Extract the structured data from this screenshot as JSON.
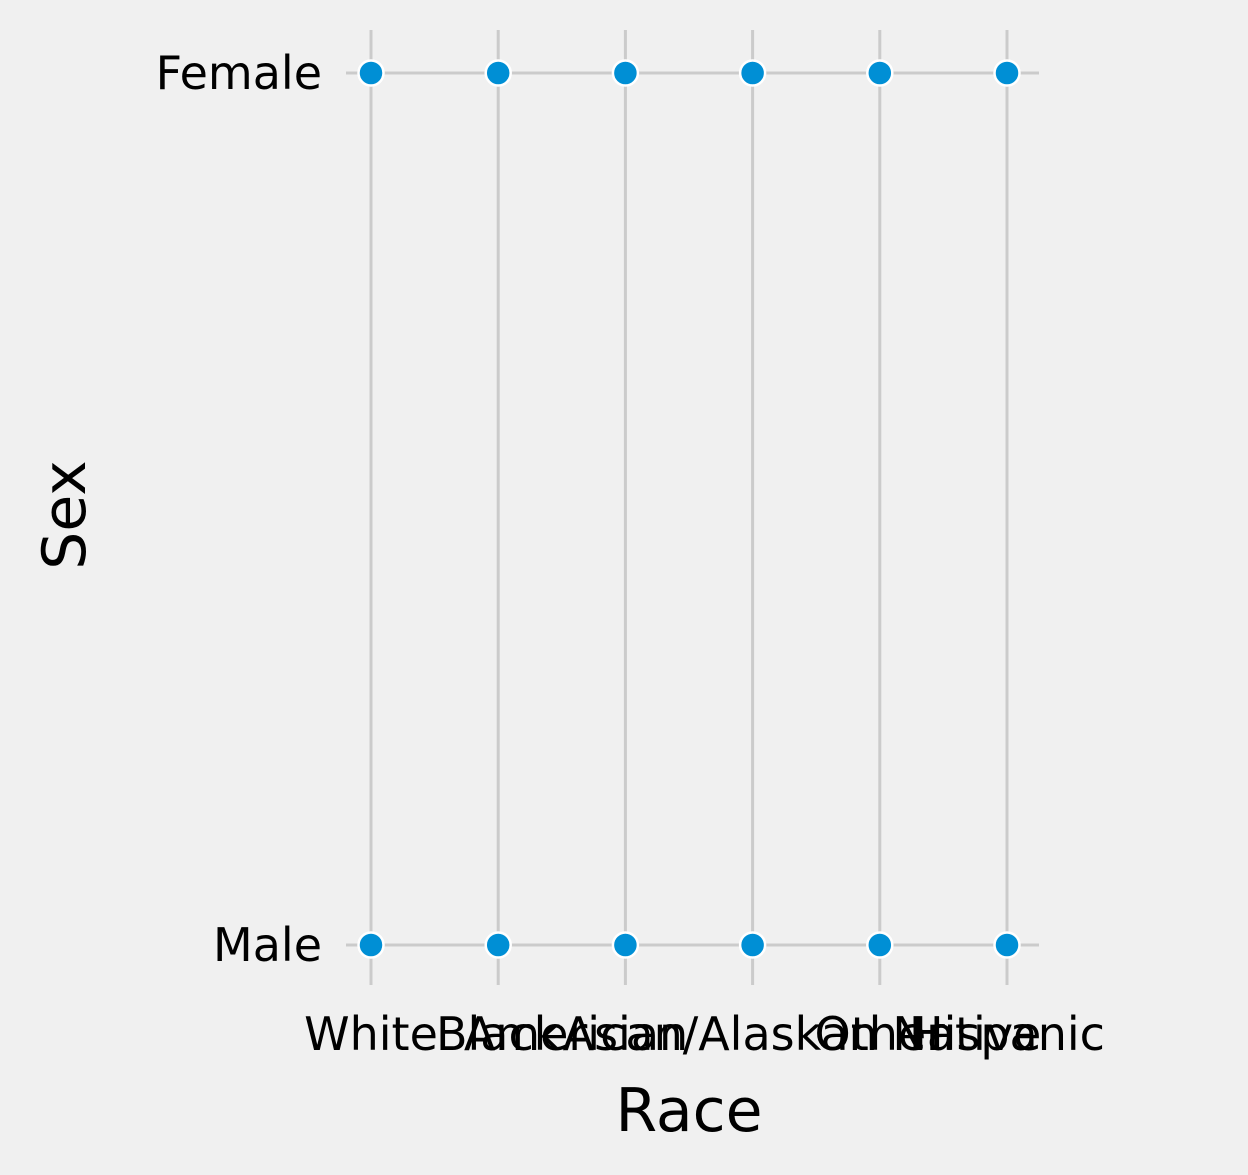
{
  "chart_data": {
    "type": "scatter",
    "x_categories": [
      "White",
      "Black",
      "Asian",
      "American/Alaskan Native",
      "Other",
      "Hispanic"
    ],
    "y_categories": [
      "Male",
      "Female"
    ],
    "points": [
      {
        "x": "White",
        "y": "Female"
      },
      {
        "x": "Black",
        "y": "Female"
      },
      {
        "x": "Asian",
        "y": "Female"
      },
      {
        "x": "American/Alaskan Native",
        "y": "Female"
      },
      {
        "x": "Other",
        "y": "Female"
      },
      {
        "x": "Hispanic",
        "y": "Female"
      },
      {
        "x": "White",
        "y": "Male"
      },
      {
        "x": "Black",
        "y": "Male"
      },
      {
        "x": "Asian",
        "y": "Male"
      },
      {
        "x": "American/Alaskan Native",
        "y": "Male"
      },
      {
        "x": "Other",
        "y": "Male"
      },
      {
        "x": "Hispanic",
        "y": "Male"
      }
    ],
    "xlabel": "Race",
    "ylabel": "Sex",
    "grid": true,
    "marker_color": "#008fd5",
    "marker_edge_color": "#ffffff",
    "grid_color": "#cbcbcb",
    "background_color": "#f0f0f0"
  }
}
